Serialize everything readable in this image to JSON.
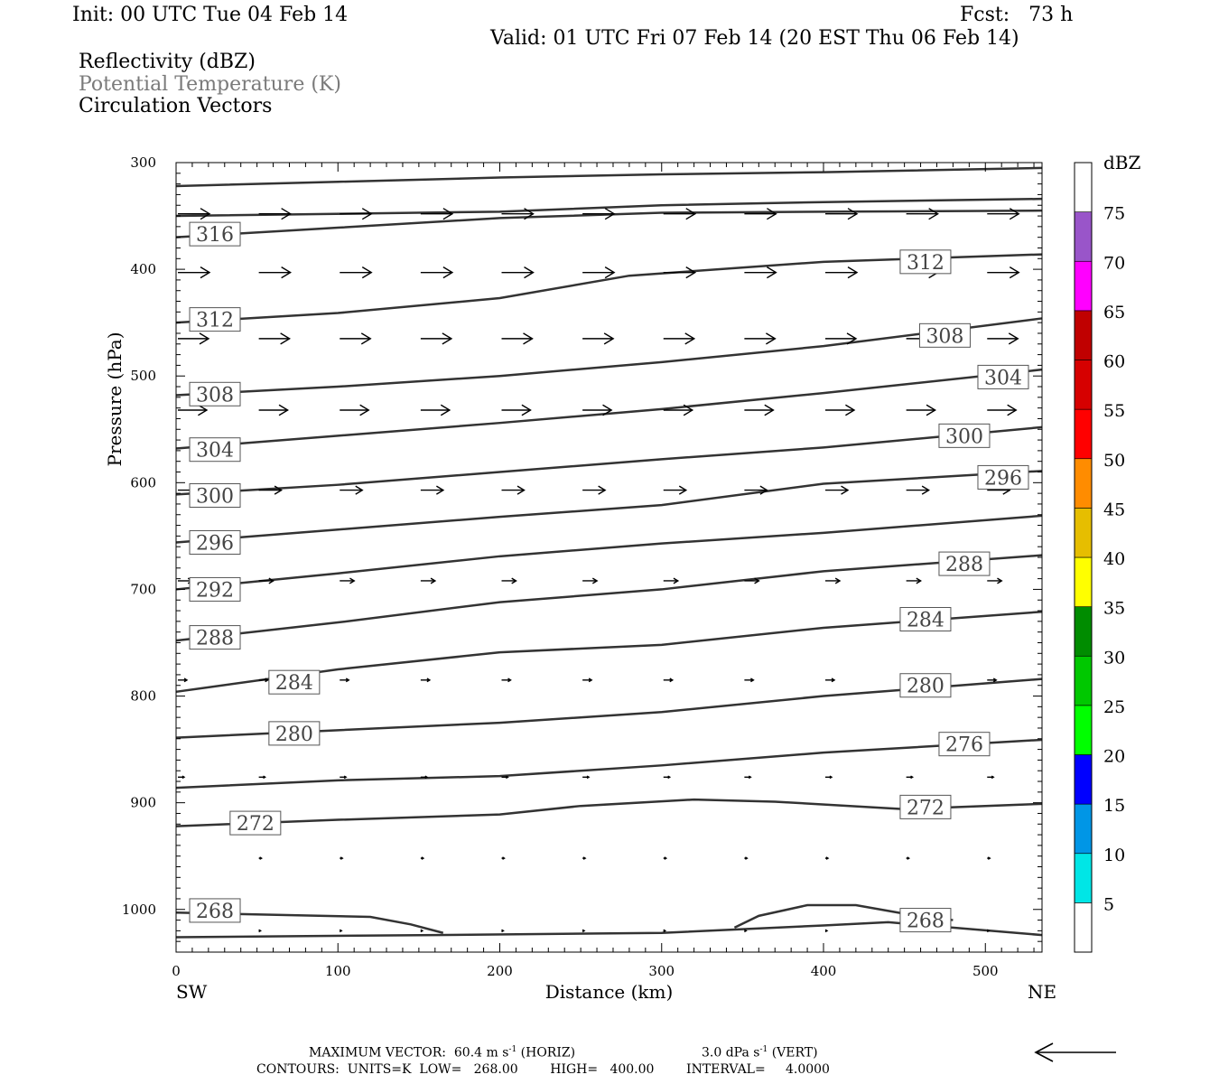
{
  "header": {
    "init": "Init: 00 UTC Tue 04 Feb 14",
    "fcst": "Fcst:   73 h",
    "valid": "Valid: 01 UTC Fri 07 Feb 14 (20 EST Thu 06 Feb 14)",
    "field1": "Reflectivity (dBZ)",
    "field2": "Potential Temperature (K)",
    "field3": "Circulation Vectors"
  },
  "colorbar": {
    "unit": "dBZ",
    "labels": [
      "5",
      "10",
      "15",
      "20",
      "25",
      "30",
      "35",
      "40",
      "45",
      "50",
      "55",
      "60",
      "65",
      "70",
      "75"
    ],
    "colors": [
      "#ffffff",
      "#00e6e6",
      "#0096e6",
      "#0000ff",
      "#00ff00",
      "#00c800",
      "#008c00",
      "#ffff00",
      "#e6be00",
      "#ff8c00",
      "#ff0000",
      "#d60000",
      "#c00000",
      "#ff00ff",
      "#9955c9",
      "#ffffff"
    ]
  },
  "footer": {
    "max_vector": "MAXIMUM VECTOR:  60.4 m s",
    "max_vector_h": "(HORIZ)",
    "max_vector_v": "3.0 dPa s",
    "max_vector_v2": "(VERT)",
    "sup": "-1",
    "contours": "CONTOURS:  UNITS=K  LOW=   268.00        HIGH=   400.00        INTERVAL=     4.0000"
  },
  "chart_data": {
    "type": "line",
    "xlabel": "Distance (km)",
    "ylabel": "Pressure (hPa)",
    "xlim": [
      0,
      535
    ],
    "ylim": [
      1040,
      300
    ],
    "x_ticks": [
      "0",
      "100",
      "200",
      "300",
      "400",
      "500"
    ],
    "y_ticks": [
      "300",
      "400",
      "500",
      "600",
      "700",
      "800",
      "900",
      "1000"
    ],
    "x_end_labels": {
      "left": "SW",
      "right": "NE"
    },
    "grid": false,
    "contour_labels": [
      {
        "value": "316",
        "x": 24,
        "p": 367
      },
      {
        "value": "312",
        "x": 24,
        "p": 447
      },
      {
        "value": "312",
        "x": 463,
        "p": 393
      },
      {
        "value": "308",
        "x": 24,
        "p": 517
      },
      {
        "value": "308",
        "x": 475,
        "p": 462
      },
      {
        "value": "304",
        "x": 24,
        "p": 569
      },
      {
        "value": "304",
        "x": 511,
        "p": 501
      },
      {
        "value": "300",
        "x": 24,
        "p": 612
      },
      {
        "value": "300",
        "x": 487,
        "p": 556
      },
      {
        "value": "296",
        "x": 24,
        "p": 656
      },
      {
        "value": "296",
        "x": 511,
        "p": 595
      },
      {
        "value": "292",
        "x": 24,
        "p": 700
      },
      {
        "value": "288",
        "x": 24,
        "p": 745
      },
      {
        "value": "288",
        "x": 487,
        "p": 676
      },
      {
        "value": "284",
        "x": 73,
        "p": 787
      },
      {
        "value": "284",
        "x": 463,
        "p": 728
      },
      {
        "value": "280",
        "x": 73,
        "p": 835
      },
      {
        "value": "280",
        "x": 463,
        "p": 790
      },
      {
        "value": "276",
        "x": 487,
        "p": 845
      },
      {
        "value": "272",
        "x": 49,
        "p": 919
      },
      {
        "value": "272",
        "x": 463,
        "p": 904
      },
      {
        "value": "268",
        "x": 24,
        "p": 1001
      },
      {
        "value": "268",
        "x": 463,
        "p": 1010
      }
    ],
    "series": [
      {
        "values": [
          [
            0,
            322
          ],
          [
            100,
            318
          ],
          [
            200,
            314
          ],
          [
            300,
            311
          ],
          [
            400,
            309
          ],
          [
            535,
            305
          ]
        ]
      },
      {
        "values": [
          [
            0,
            350
          ],
          [
            200,
            346
          ],
          [
            300,
            340
          ],
          [
            400,
            337
          ],
          [
            535,
            334
          ]
        ]
      },
      {
        "values": [
          [
            0,
            370
          ],
          [
            100,
            361
          ],
          [
            200,
            352
          ],
          [
            300,
            347
          ],
          [
            400,
            346
          ],
          [
            535,
            345
          ]
        ]
      },
      {
        "values": [
          [
            0,
            450
          ],
          [
            100,
            441
          ],
          [
            200,
            427
          ],
          [
            280,
            406
          ],
          [
            400,
            393
          ],
          [
            535,
            386
          ]
        ]
      },
      {
        "values": [
          [
            0,
            518
          ],
          [
            100,
            510
          ],
          [
            200,
            500
          ],
          [
            300,
            487
          ],
          [
            400,
            472
          ],
          [
            535,
            446
          ]
        ]
      },
      {
        "values": [
          [
            0,
            568
          ],
          [
            100,
            556
          ],
          [
            200,
            544
          ],
          [
            300,
            531
          ],
          [
            400,
            516
          ],
          [
            535,
            494
          ]
        ]
      },
      {
        "values": [
          [
            0,
            611
          ],
          [
            100,
            602
          ],
          [
            200,
            590
          ],
          [
            300,
            578
          ],
          [
            400,
            567
          ],
          [
            535,
            548
          ]
        ]
      },
      {
        "values": [
          [
            0,
            656
          ],
          [
            100,
            644
          ],
          [
            200,
            632
          ],
          [
            300,
            621
          ],
          [
            400,
            601
          ],
          [
            535,
            589
          ]
        ]
      },
      {
        "values": [
          [
            0,
            700
          ],
          [
            100,
            685
          ],
          [
            200,
            669
          ],
          [
            300,
            657
          ],
          [
            400,
            647
          ],
          [
            535,
            631
          ]
        ]
      },
      {
        "values": [
          [
            0,
            748
          ],
          [
            100,
            731
          ],
          [
            200,
            712
          ],
          [
            300,
            700
          ],
          [
            400,
            683
          ],
          [
            535,
            668
          ]
        ]
      },
      {
        "values": [
          [
            0,
            796
          ],
          [
            100,
            775
          ],
          [
            200,
            759
          ],
          [
            300,
            752
          ],
          [
            400,
            736
          ],
          [
            535,
            721
          ]
        ]
      },
      {
        "values": [
          [
            0,
            839
          ],
          [
            100,
            832
          ],
          [
            200,
            825
          ],
          [
            300,
            815
          ],
          [
            400,
            800
          ],
          [
            535,
            784
          ]
        ]
      },
      {
        "values": [
          [
            0,
            886
          ],
          [
            100,
            879
          ],
          [
            200,
            875
          ],
          [
            300,
            865
          ],
          [
            400,
            853
          ],
          [
            535,
            841
          ]
        ]
      },
      {
        "values": [
          [
            0,
            922
          ],
          [
            100,
            916
          ],
          [
            200,
            911
          ],
          [
            250,
            903
          ],
          [
            320,
            897
          ],
          [
            370,
            899
          ],
          [
            450,
            906
          ],
          [
            535,
            901
          ]
        ]
      },
      {
        "values": [
          [
            0,
            1003
          ],
          [
            120,
            1007
          ],
          [
            145,
            1014
          ],
          [
            165,
            1022
          ]
        ]
      },
      {
        "values": [
          [
            345,
            1017
          ],
          [
            360,
            1006
          ],
          [
            390,
            996
          ],
          [
            420,
            996
          ],
          [
            450,
            1004
          ],
          [
            480,
            1010
          ]
        ]
      },
      {
        "values": [
          [
            0,
            1026
          ],
          [
            160,
            1024
          ],
          [
            300,
            1022
          ],
          [
            400,
            1015
          ],
          [
            440,
            1012
          ],
          [
            535,
            1024
          ]
        ]
      }
    ],
    "vector_rows": [
      {
        "p": 348,
        "x": [
          0,
          50,
          100,
          150,
          200,
          250,
          300,
          350,
          400,
          450,
          500
        ],
        "len": 35
      },
      {
        "p": 403,
        "x": [
          0,
          50,
          100,
          150,
          200,
          250,
          300,
          350,
          400,
          450,
          500
        ],
        "len": 35
      },
      {
        "p": 465,
        "x": [
          0,
          50,
          100,
          150,
          200,
          250,
          300,
          350,
          400,
          450,
          500
        ],
        "len": 34
      },
      {
        "p": 532,
        "x": [
          0,
          50,
          100,
          150,
          200,
          250,
          300,
          350,
          400,
          450,
          500
        ],
        "len": 32
      },
      {
        "p": 607,
        "x": [
          0,
          50,
          100,
          150,
          200,
          250,
          300,
          350,
          400,
          450,
          500
        ],
        "len": 25
      },
      {
        "p": 692,
        "x": [
          0,
          50,
          100,
          150,
          200,
          250,
          300,
          350,
          400,
          450,
          500
        ],
        "len": 16
      },
      {
        "p": 785,
        "x": [
          0,
          50,
          100,
          150,
          200,
          250,
          300,
          350,
          400,
          450,
          500
        ],
        "len": 10
      },
      {
        "p": 876,
        "x": [
          0,
          50,
          100,
          150,
          200,
          250,
          300,
          350,
          400,
          450,
          500
        ],
        "len": 7
      },
      {
        "p": 952,
        "x": [
          50,
          100,
          150,
          200,
          250,
          300,
          350,
          400,
          450,
          500
        ],
        "len": 3
      },
      {
        "p": 1020,
        "x": [
          50,
          100,
          150,
          200,
          250,
          300,
          350,
          400,
          450,
          500
        ],
        "len": 2
      }
    ],
    "reference_vector": {
      "value": "60.4 m s-1"
    }
  }
}
